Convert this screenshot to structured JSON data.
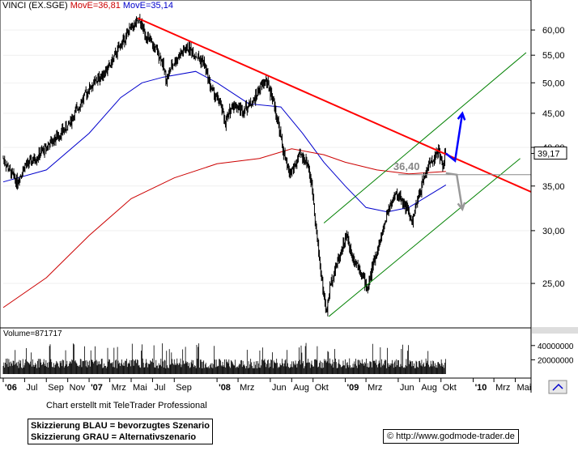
{
  "header": {
    "name": "VINCI (EX.SGE)",
    "ma_short": "MovE=36,81",
    "ma_long": "MovE=35,14",
    "color_name": "#000000",
    "color_ma_short": "#cc0000",
    "color_ma_long": "#0000cc"
  },
  "last_price_label": "39,17",
  "annotation_level": "36,40",
  "volume_label": "Volume=871717",
  "footer": {
    "credit": "Chart erstellt mit TeleTrader Professional",
    "legend_blue": "Skizzierung BLAU = bevorzugtes Szenario",
    "legend_gray": "Skizzierung GRAU = Alternativszenario",
    "url": "http://www.godmode-trader.de",
    "copyright_symbol": "©"
  },
  "colors": {
    "candles": "#000000",
    "ma_short": "#cc0000",
    "ma_long": "#0000cc",
    "resistance": "#ff0000",
    "channel": "#008000",
    "scenario_blue": "#0000ff",
    "scenario_gray": "#999999",
    "support": "#888888"
  },
  "chart_data": {
    "type": "candlestick",
    "y_scale": "log",
    "ylim": [
      21.5,
      64
    ],
    "y_ticks": [
      "60,00",
      "55,00",
      "50,00",
      "45,00",
      "40,00",
      "35,00",
      "30,00",
      "25,00"
    ],
    "y_tick_values": [
      60,
      55,
      50,
      45,
      40,
      35,
      30,
      25
    ],
    "x_ticks": [
      "'06",
      "Jul",
      "Sep",
      "Nov",
      "'07",
      "Mrz",
      "Mai",
      "Jul",
      "Sep",
      "'08",
      "Mrz",
      "Jun",
      "Aug",
      "Okt",
      "'09",
      "Mrz",
      "Jun",
      "Aug",
      "Okt",
      "'10",
      "Mrz",
      "Mai"
    ],
    "x_tick_dates": [
      "2006-05-01",
      "2006-07-01",
      "2006-09-01",
      "2006-11-01",
      "2007-01-01",
      "2007-03-01",
      "2007-05-01",
      "2007-07-01",
      "2007-09-01",
      "2008-01-01",
      "2008-03-01",
      "2008-06-01",
      "2008-08-01",
      "2008-10-01",
      "2009-01-01",
      "2009-03-01",
      "2009-06-01",
      "2009-08-01",
      "2009-10-01",
      "2010-01-01",
      "2010-03-01",
      "2010-05-01"
    ],
    "xlim": [
      "2006-05-01",
      "2010-06-15"
    ],
    "price_path": [
      [
        "2006-05-01",
        38.5
      ],
      [
        "2006-05-20",
        36.8
      ],
      [
        "2006-06-10",
        35.5
      ],
      [
        "2006-07-01",
        37.5
      ],
      [
        "2006-08-01",
        38.5
      ],
      [
        "2006-09-01",
        40.0
      ],
      [
        "2006-10-01",
        41.5
      ],
      [
        "2006-11-01",
        43.0
      ],
      [
        "2006-12-01",
        46.0
      ],
      [
        "2007-01-01",
        49.0
      ],
      [
        "2007-02-01",
        51.0
      ],
      [
        "2007-03-01",
        53.0
      ],
      [
        "2007-04-01",
        57.0
      ],
      [
        "2007-05-01",
        60.5
      ],
      [
        "2007-05-25",
        61.8
      ],
      [
        "2007-06-15",
        58.5
      ],
      [
        "2007-07-05",
        56.5
      ],
      [
        "2007-07-25",
        54.5
      ],
      [
        "2007-08-10",
        50.5
      ],
      [
        "2007-08-25",
        53.0
      ],
      [
        "2007-09-15",
        55.0
      ],
      [
        "2007-10-10",
        56.5
      ],
      [
        "2007-11-01",
        55.0
      ],
      [
        "2007-11-25",
        53.5
      ],
      [
        "2007-12-15",
        49.0
      ],
      [
        "2008-01-10",
        46.5
      ],
      [
        "2008-01-25",
        43.5
      ],
      [
        "2008-02-15",
        46.5
      ],
      [
        "2008-03-15",
        45.5
      ],
      [
        "2008-04-15",
        47.0
      ],
      [
        "2008-05-01",
        49.0
      ],
      [
        "2008-05-20",
        50.5
      ],
      [
        "2008-06-10",
        47.0
      ],
      [
        "2008-06-25",
        43.0
      ],
      [
        "2008-07-10",
        39.0
      ],
      [
        "2008-07-25",
        36.5
      ],
      [
        "2008-08-10",
        37.5
      ],
      [
        "2008-08-25",
        39.0
      ],
      [
        "2008-09-15",
        38.0
      ],
      [
        "2008-10-01",
        34.0
      ],
      [
        "2008-10-10",
        30.0
      ],
      [
        "2008-10-25",
        25.5
      ],
      [
        "2008-11-08",
        22.5
      ],
      [
        "2008-11-20",
        25.0
      ],
      [
        "2008-12-10",
        27.0
      ],
      [
        "2009-01-05",
        29.5
      ],
      [
        "2009-01-20",
        27.5
      ],
      [
        "2009-02-10",
        26.5
      ],
      [
        "2009-03-05",
        24.5
      ],
      [
        "2009-03-20",
        26.5
      ],
      [
        "2009-04-15",
        29.5
      ],
      [
        "2009-05-05",
        32.5
      ],
      [
        "2009-05-25",
        34.0
      ],
      [
        "2009-06-10",
        33.5
      ],
      [
        "2009-06-25",
        32.5
      ],
      [
        "2009-07-10",
        30.8
      ],
      [
        "2009-07-25",
        33.0
      ],
      [
        "2009-08-10",
        35.5
      ],
      [
        "2009-08-25",
        37.5
      ],
      [
        "2009-09-10",
        38.5
      ],
      [
        "2009-09-25",
        39.5
      ],
      [
        "2009-10-05",
        37.5
      ],
      [
        "2009-10-15",
        39.17
      ]
    ],
    "ma_long_path": [
      [
        "2006-05-01",
        35.5
      ],
      [
        "2006-09-01",
        37.0
      ],
      [
        "2007-01-01",
        42.0
      ],
      [
        "2007-04-01",
        47.5
      ],
      [
        "2007-06-01",
        50.0
      ],
      [
        "2007-08-01",
        51.0
      ],
      [
        "2007-11-01",
        52.0
      ],
      [
        "2008-01-01",
        50.0
      ],
      [
        "2008-04-01",
        46.5
      ],
      [
        "2008-07-01",
        46.0
      ],
      [
        "2008-09-01",
        42.0
      ],
      [
        "2008-11-01",
        38.0
      ],
      [
        "2009-01-01",
        35.0
      ],
      [
        "2009-03-01",
        32.5
      ],
      [
        "2009-05-01",
        32.0
      ],
      [
        "2009-07-01",
        32.5
      ],
      [
        "2009-09-01",
        34.0
      ],
      [
        "2009-10-15",
        35.14
      ]
    ],
    "ma_short_path": [
      [
        "2006-05-01",
        23.0
      ],
      [
        "2006-09-01",
        25.5
      ],
      [
        "2007-01-01",
        29.5
      ],
      [
        "2007-05-01",
        33.5
      ],
      [
        "2007-09-01",
        36.0
      ],
      [
        "2008-01-01",
        37.8
      ],
      [
        "2008-05-01",
        38.5
      ],
      [
        "2008-08-01",
        39.8
      ],
      [
        "2008-11-01",
        39.0
      ],
      [
        "2009-01-01",
        38.0
      ],
      [
        "2009-04-01",
        37.0
      ],
      [
        "2009-07-01",
        36.5
      ],
      [
        "2009-10-15",
        36.81
      ]
    ],
    "resistance_line": [
      [
        "2007-05-20",
        62.5
      ],
      [
        "2010-06-15",
        34.3
      ]
    ],
    "channel_lower": [
      [
        "2008-11-15",
        22.3
      ],
      [
        "2010-05-15",
        38.5
      ]
    ],
    "channel_upper": [
      [
        "2008-11-01",
        30.8
      ],
      [
        "2010-06-01",
        55.5
      ]
    ],
    "support_level": 36.4,
    "support_from": "2009-06-01",
    "scenario_blue": [
      [
        "2009-10-15",
        39.17
      ],
      [
        "2009-11-10",
        38.2
      ],
      [
        "2009-12-01",
        45.0
      ]
    ],
    "scenario_gray": [
      [
        "2009-10-15",
        36.6
      ],
      [
        "2009-11-15",
        36.4
      ],
      [
        "2009-12-01",
        32.3
      ]
    ],
    "volume_ticks": [
      "40000000",
      "20000000"
    ],
    "volume_tick_values": [
      40000000,
      20000000
    ],
    "volume_ylim": [
      0,
      50000000
    ]
  }
}
